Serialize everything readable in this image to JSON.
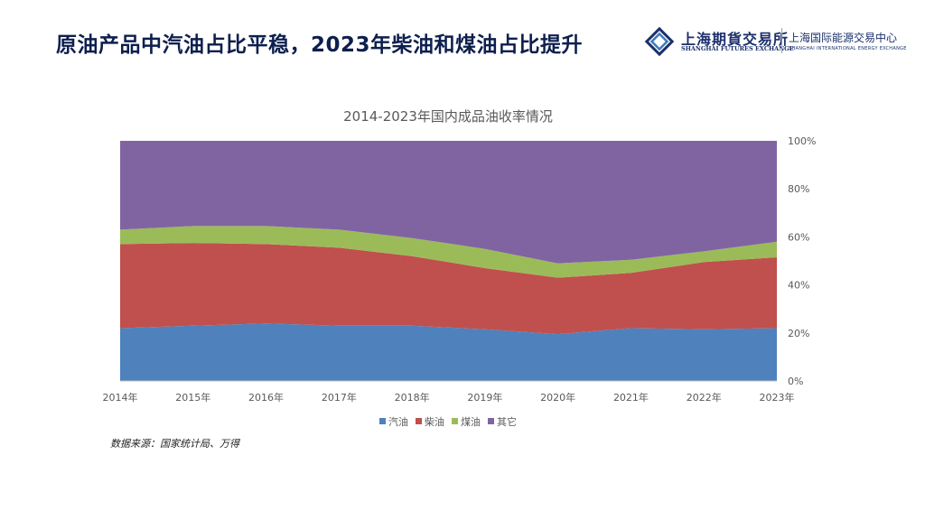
{
  "header": {
    "title": "原油产品中汽油占比平稳，2023年柴油和煤油占比提升"
  },
  "logo": {
    "cn_name": "上海期貨交易所",
    "en_name": "SHANGHAI FUTURES EXCHANGE",
    "cn_name2": "上海国际能源交易中心",
    "en_name2": "SHANGHAI INTERNATIONAL ENERGY EXCHANGE",
    "brand_color": "#1b2f6b"
  },
  "chart_data": {
    "type": "area",
    "stacked": true,
    "percent": true,
    "title": "2014-2023年国内成品油收率情况",
    "x": [
      "2014年",
      "2015年",
      "2016年",
      "2017年",
      "2018年",
      "2019年",
      "2020年",
      "2021年",
      "2022年",
      "2023年"
    ],
    "ylim": [
      0,
      100
    ],
    "ytick_labels": [
      "0%",
      "20%",
      "40%",
      "60%",
      "80%",
      "100%"
    ],
    "y_axis_side": "right",
    "legend_position": "bottom",
    "grid": false,
    "series": [
      {
        "name": "汽油",
        "color": "#4f81bd",
        "values": [
          22,
          23,
          24,
          23,
          23,
          21.5,
          19.5,
          22,
          21.5,
          22
        ]
      },
      {
        "name": "柴油",
        "color": "#c0504d",
        "values": [
          35,
          34.5,
          33,
          32.5,
          29,
          25.5,
          23.5,
          23,
          28,
          29.5
        ]
      },
      {
        "name": "煤油",
        "color": "#9bbb59",
        "values": [
          6,
          7,
          7.5,
          7.5,
          7.5,
          8,
          6,
          5.5,
          4.5,
          6.5
        ]
      },
      {
        "name": "其它",
        "color": "#8064a2",
        "values": [
          37,
          35.5,
          35.5,
          37,
          40.5,
          45,
          51,
          49.5,
          46,
          42
        ]
      }
    ]
  },
  "footer": {
    "source": "数据来源：国家统计局、万得"
  }
}
